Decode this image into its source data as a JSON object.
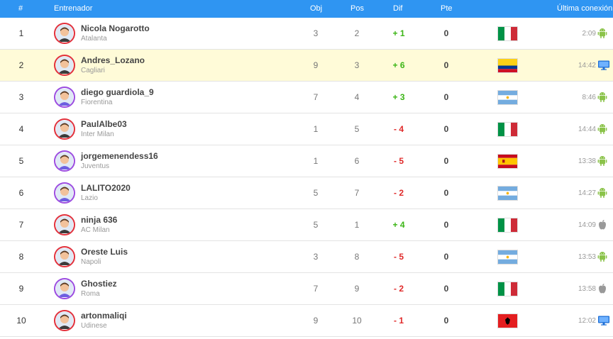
{
  "header": {
    "rank": "#",
    "coach": "Entrenador",
    "obj": "Obj",
    "pos": "Pos",
    "dif": "Dif",
    "pte": "Pte",
    "last_connection": "Última conexión"
  },
  "rows": [
    {
      "rank": "1",
      "name": "Nicola Nogarotto",
      "team": "Atalanta",
      "obj": "3",
      "pos": "2",
      "dif": "+ 1",
      "dif_dir": "up",
      "pte": "0",
      "flag": "italy",
      "time": "2:09",
      "os": "android-icon",
      "avatar": "red",
      "highlight": false
    },
    {
      "rank": "2",
      "name": "Andres_Lozano",
      "team": "Cagliari",
      "obj": "9",
      "pos": "3",
      "dif": "+ 6",
      "dif_dir": "up",
      "pte": "0",
      "flag": "colombia",
      "time": "14:42",
      "os": "desktop-icon",
      "avatar": "red",
      "highlight": true
    },
    {
      "rank": "3",
      "name": "diego guardiola_9",
      "team": "Fiorentina",
      "obj": "7",
      "pos": "4",
      "dif": "+ 3",
      "dif_dir": "up",
      "pte": "0",
      "flag": "argentina",
      "time": "8:46",
      "os": "android-icon",
      "avatar": "purple",
      "highlight": false
    },
    {
      "rank": "4",
      "name": "PaulAlbe03",
      "team": "Inter Milan",
      "obj": "1",
      "pos": "5",
      "dif": "- 4",
      "dif_dir": "down",
      "pte": "0",
      "flag": "italy",
      "time": "14:44",
      "os": "android-icon",
      "avatar": "red",
      "highlight": false
    },
    {
      "rank": "5",
      "name": "jorgemenendess16",
      "team": "Juventus",
      "obj": "1",
      "pos": "6",
      "dif": "- 5",
      "dif_dir": "down",
      "pte": "0",
      "flag": "spain",
      "time": "13:38",
      "os": "android-icon",
      "avatar": "purple",
      "highlight": false
    },
    {
      "rank": "6",
      "name": "LALITO2020",
      "team": "Lazio",
      "obj": "5",
      "pos": "7",
      "dif": "- 2",
      "dif_dir": "down",
      "pte": "0",
      "flag": "argentina",
      "time": "14:27",
      "os": "android-icon",
      "avatar": "purple",
      "highlight": false
    },
    {
      "rank": "7",
      "name": "ninja 636",
      "team": "AC Milan",
      "obj": "5",
      "pos": "1",
      "dif": "+ 4",
      "dif_dir": "up",
      "pte": "0",
      "flag": "italy",
      "time": "14:09",
      "os": "apple-icon",
      "avatar": "red",
      "highlight": false
    },
    {
      "rank": "8",
      "name": "Oreste Luis",
      "team": "Napoli",
      "obj": "3",
      "pos": "8",
      "dif": "- 5",
      "dif_dir": "down",
      "pte": "0",
      "flag": "argentina",
      "time": "13:53",
      "os": "android-icon",
      "avatar": "red",
      "highlight": false
    },
    {
      "rank": "9",
      "name": "Ghostiez",
      "team": "Roma",
      "obj": "7",
      "pos": "9",
      "dif": "- 2",
      "dif_dir": "down",
      "pte": "0",
      "flag": "italy",
      "time": "13:58",
      "os": "apple-icon",
      "avatar": "purple",
      "highlight": false
    },
    {
      "rank": "10",
      "name": "artonmaliqi",
      "team": "Udinese",
      "obj": "9",
      "pos": "10",
      "dif": "- 1",
      "dif_dir": "down",
      "pte": "0",
      "flag": "albania",
      "time": "12:02",
      "os": "desktop-icon",
      "avatar": "red",
      "highlight": false
    }
  ],
  "colors": {
    "header": "#2f95f2",
    "up": "#3bb515",
    "down": "#e02a2a",
    "highlight": "#fffbd8"
  }
}
